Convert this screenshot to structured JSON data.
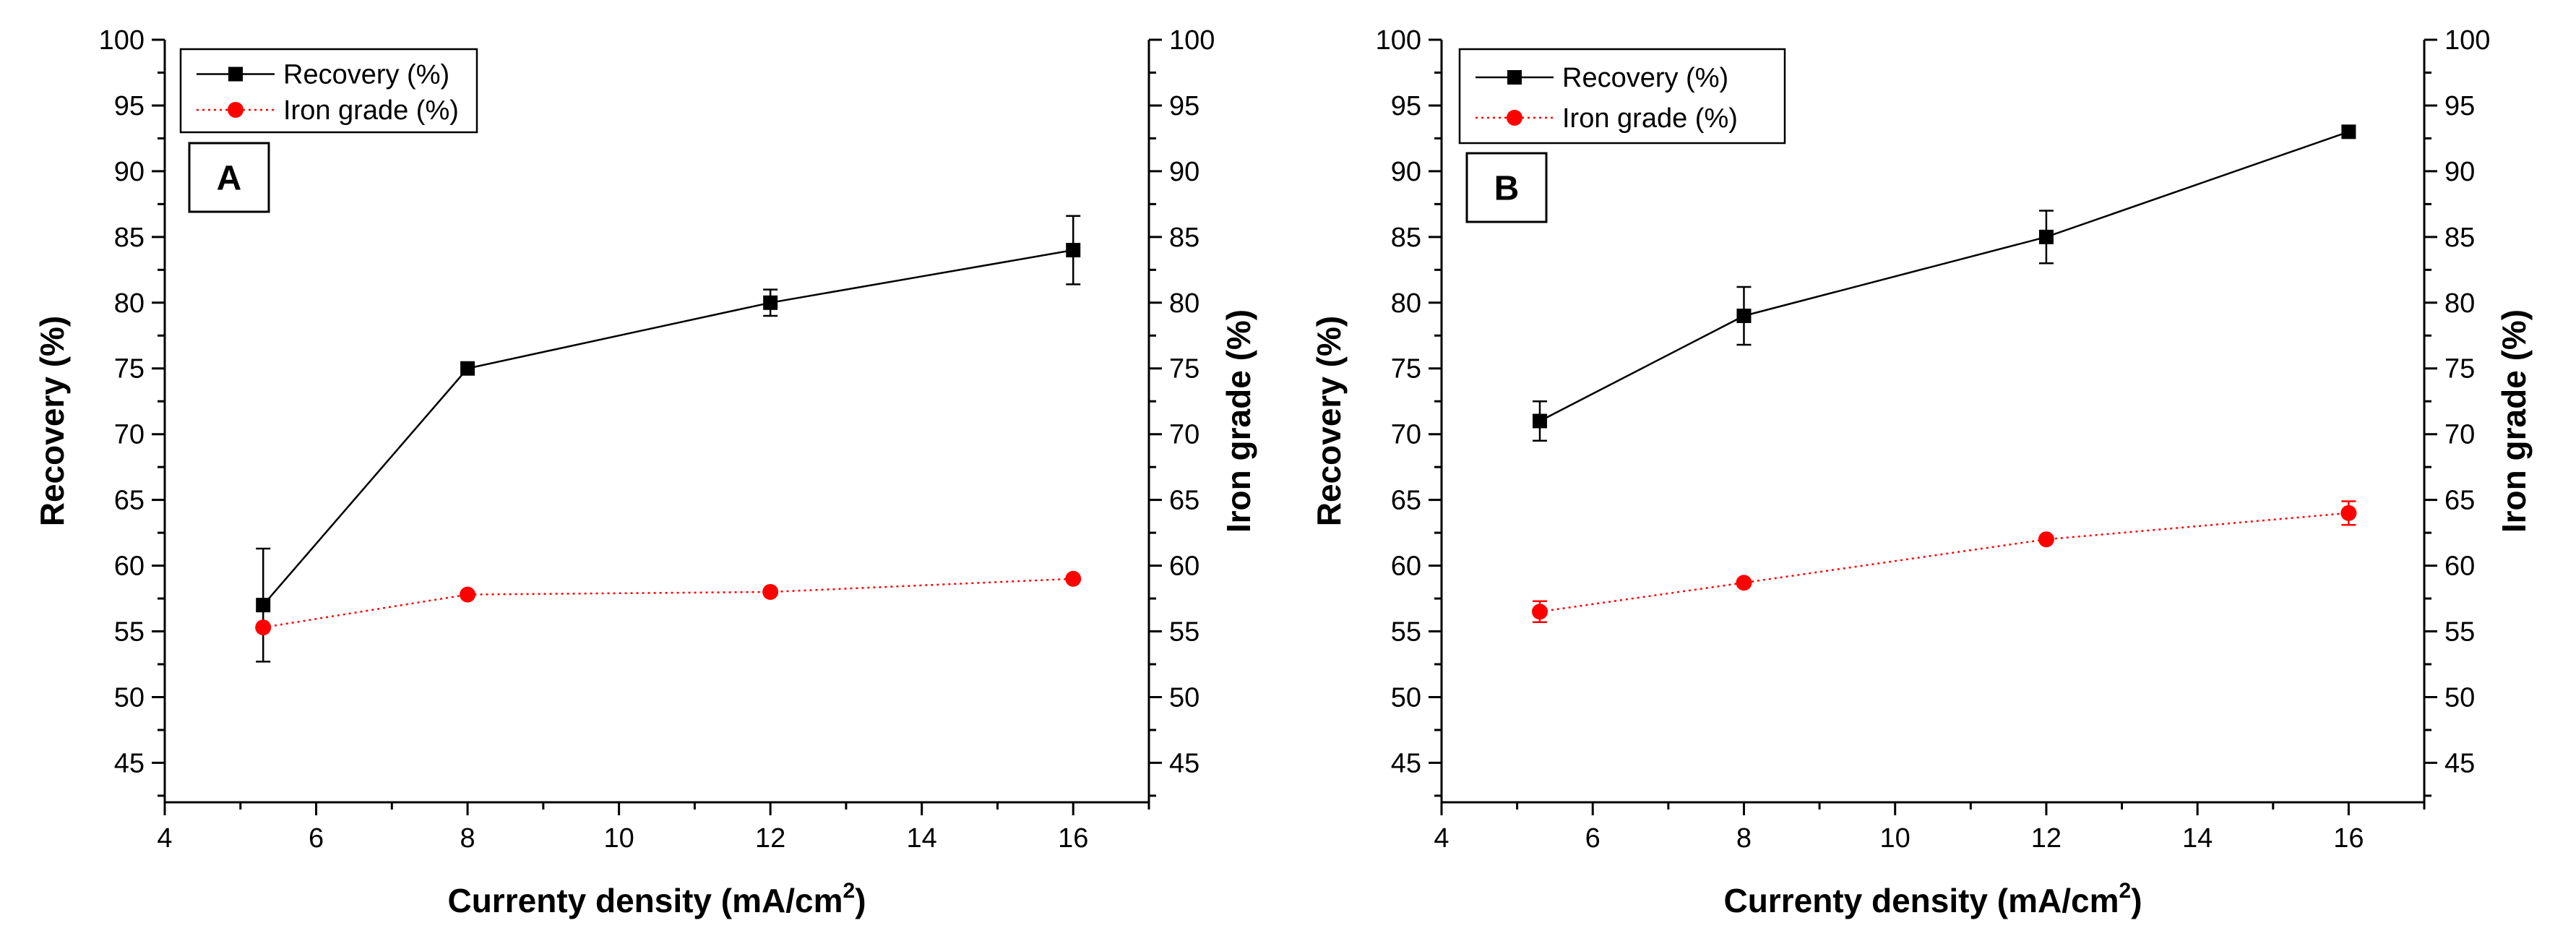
{
  "chart_data": [
    {
      "type": "line",
      "panel_label": "A",
      "xlabel": "Currenty density (mA/cm",
      "xlabel_sup": "2",
      "xlabel_close": ")",
      "ylabel": "Recovery (%)",
      "y2label": "Iron grade (%)",
      "xlim": [
        4,
        17
      ],
      "ylim": [
        42,
        100
      ],
      "xticks": [
        "4",
        "6",
        "8",
        "10",
        "12",
        "14",
        "16"
      ],
      "yticks": [
        "45",
        "50",
        "55",
        "60",
        "65",
        "70",
        "75",
        "80",
        "85",
        "90",
        "95",
        "100"
      ],
      "y2ticks": [
        "45",
        "50",
        "55",
        "60",
        "65",
        "70",
        "75",
        "80",
        "85",
        "90",
        "95",
        "100"
      ],
      "series": [
        {
          "name": "Recovery (%)",
          "color": "#000000",
          "marker": "square",
          "line": "solid",
          "x": [
            5.3,
            8,
            12,
            16
          ],
          "y": [
            57,
            75,
            80,
            84
          ],
          "err": [
            4.3,
            0,
            1.0,
            2.6
          ]
        },
        {
          "name": "Iron grade (%)",
          "color": "#ff0000",
          "marker": "circle",
          "line": "dotted",
          "x": [
            5.3,
            8,
            12,
            16
          ],
          "y": [
            55.3,
            57.8,
            58.0,
            59.0
          ],
          "err": [
            0,
            0,
            0,
            0
          ]
        }
      ]
    },
    {
      "type": "line",
      "panel_label": "B",
      "xlabel": "Currenty density (mA/cm",
      "xlabel_sup": "2",
      "xlabel_close": ")",
      "ylabel": "Recovery (%)",
      "y2label": "Iron grade (%)",
      "xlim": [
        4,
        17
      ],
      "ylim": [
        42,
        100
      ],
      "xticks": [
        "4",
        "6",
        "8",
        "10",
        "12",
        "14",
        "16"
      ],
      "yticks": [
        "45",
        "50",
        "55",
        "60",
        "65",
        "70",
        "75",
        "80",
        "85",
        "90",
        "95",
        "100"
      ],
      "y2ticks": [
        "45",
        "50",
        "55",
        "60",
        "65",
        "70",
        "75",
        "80",
        "85",
        "90",
        "95",
        "100"
      ],
      "series": [
        {
          "name": "Recovery (%)",
          "color": "#000000",
          "marker": "square",
          "line": "solid",
          "x": [
            5.3,
            8,
            12,
            16
          ],
          "y": [
            71,
            79,
            85,
            93
          ],
          "err": [
            1.5,
            2.2,
            2.0,
            0
          ]
        },
        {
          "name": "Iron grade (%)",
          "color": "#ff0000",
          "marker": "circle",
          "line": "dotted",
          "x": [
            5.3,
            8,
            12,
            16
          ],
          "y": [
            56.5,
            58.7,
            62.0,
            64.0
          ],
          "err": [
            0.8,
            0,
            0,
            0.9
          ]
        }
      ]
    }
  ]
}
